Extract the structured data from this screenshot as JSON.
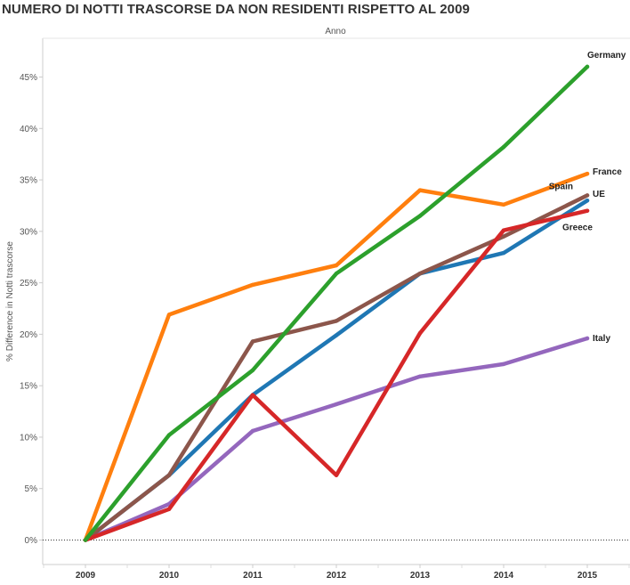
{
  "chart_data": {
    "type": "line",
    "title": "NUMERO DI NOTTI TRASCORSE DA NON RESIDENTI RISPETTO AL 2009",
    "x_header": "Anno",
    "ylabel": "% Difference in Notti trascorse",
    "x": [
      "2009",
      "2010",
      "2011",
      "2012",
      "2013",
      "2014",
      "2015"
    ],
    "ylim": [
      0,
      50
    ],
    "yticks": [
      0,
      5,
      10,
      15,
      20,
      25,
      30,
      35,
      40,
      45
    ],
    "ytick_labels": [
      "0%",
      "5%",
      "10%",
      "15%",
      "20%",
      "25%",
      "30%",
      "35%",
      "40%",
      "45%"
    ],
    "grid": false,
    "zero_line": "dotted",
    "series": [
      {
        "name": "Italy",
        "color": "#9467bd",
        "values": [
          0,
          3.5,
          10.6,
          13.2,
          15.9,
          17.1,
          19.6
        ]
      },
      {
        "name": "UE",
        "color": "#1f77b4",
        "values": [
          0,
          6.3,
          14.1,
          19.9,
          25.9,
          27.9,
          33.0
        ]
      },
      {
        "name": "Spain",
        "color": "#8c564b",
        "values": [
          0,
          6.3,
          19.3,
          21.3,
          25.9,
          29.5,
          33.5
        ]
      },
      {
        "name": "Greece",
        "color": "#d62728",
        "values": [
          0,
          3.0,
          14.1,
          6.3,
          20.1,
          30.1,
          32.0
        ]
      },
      {
        "name": "France",
        "color": "#ff7f0e",
        "values": [
          0,
          21.9,
          24.8,
          26.7,
          34.0,
          32.6,
          35.6
        ]
      },
      {
        "name": "Germany",
        "color": "#2ca02c",
        "values": [
          0,
          10.2,
          16.5,
          25.9,
          31.5,
          38.2,
          46.0
        ]
      }
    ]
  }
}
